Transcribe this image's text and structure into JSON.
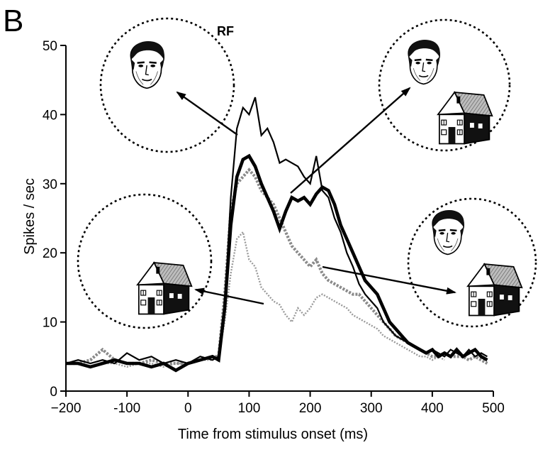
{
  "panel_letter": "B",
  "rf_label": "RF",
  "chart_data": {
    "type": "line",
    "xlabel": "Time from stimulus onset (ms)",
    "ylabel": "Spikes / sec",
    "xlim": [
      -200,
      500
    ],
    "ylim": [
      0,
      50
    ],
    "xticks": [
      -200,
      -100,
      0,
      100,
      200,
      300,
      400,
      500
    ],
    "xtick_labels": [
      "−200",
      "-100",
      "0",
      "100",
      "200",
      "300",
      "400",
      "500"
    ],
    "yticks": [
      0,
      10,
      20,
      30,
      40,
      50
    ],
    "ytick_labels": [
      "0",
      "10",
      "20",
      "30",
      "40",
      "50"
    ],
    "series": [
      {
        "stimulus": "face alone in receptive field",
        "color": "#000000",
        "style": "solid-thin",
        "x": [
          -200,
          -180,
          -160,
          -140,
          -120,
          -100,
          -80,
          -60,
          -40,
          -20,
          0,
          20,
          40,
          50,
          60,
          70,
          80,
          90,
          100,
          110,
          120,
          130,
          140,
          150,
          160,
          170,
          180,
          190,
          200,
          210,
          220,
          230,
          240,
          250,
          260,
          270,
          280,
          290,
          300,
          310,
          320,
          330,
          340,
          350,
          360,
          370,
          380,
          390,
          400,
          410,
          420,
          430,
          440,
          450,
          460,
          470,
          480,
          490
        ],
        "y": [
          4,
          4.5,
          4,
          4.5,
          4,
          5.5,
          4.5,
          5,
          4,
          4.5,
          4,
          5,
          4.5,
          5,
          12,
          28,
          38,
          41,
          40,
          42.5,
          37,
          38,
          36,
          33,
          33.5,
          33,
          32.5,
          31,
          30,
          34,
          29,
          28,
          25,
          23,
          20,
          18,
          15.5,
          14,
          13,
          12,
          10,
          9,
          8,
          7.5,
          7,
          6.5,
          6,
          5.5,
          6,
          5.5,
          5,
          6,
          5.5,
          5,
          6,
          5,
          5.5,
          5
        ]
      },
      {
        "stimulus": "face and house together",
        "color": "#000000",
        "style": "solid-thick",
        "x": [
          -200,
          -180,
          -160,
          -140,
          -120,
          -100,
          -80,
          -60,
          -40,
          -20,
          0,
          20,
          40,
          50,
          60,
          70,
          80,
          90,
          100,
          110,
          120,
          130,
          140,
          150,
          160,
          170,
          180,
          190,
          200,
          210,
          220,
          230,
          240,
          250,
          260,
          270,
          280,
          290,
          300,
          310,
          320,
          330,
          340,
          350,
          360,
          370,
          380,
          390,
          400,
          410,
          420,
          430,
          440,
          450,
          460,
          470,
          480,
          490
        ],
        "y": [
          4,
          4,
          3.5,
          4,
          4.5,
          4,
          4,
          3.5,
          4,
          3,
          4,
          4.5,
          5,
          4.5,
          12,
          24,
          31,
          33.5,
          34,
          32.5,
          30,
          28,
          26,
          23.5,
          26,
          28,
          27.5,
          28,
          27,
          28.5,
          29.5,
          29,
          27,
          24,
          22,
          20,
          18,
          16,
          15,
          14,
          12,
          10,
          9,
          8,
          7,
          6.5,
          6,
          5.5,
          6,
          5,
          5.5,
          5,
          6,
          5,
          5.5,
          6,
          5,
          4.5
        ]
      },
      {
        "stimulus": "house alone in receptive field",
        "color": "#9a9a9a",
        "style": "dotted-thin",
        "x": [
          -200,
          -180,
          -160,
          -140,
          -120,
          -100,
          -80,
          -60,
          -40,
          -20,
          0,
          20,
          40,
          50,
          60,
          70,
          80,
          90,
          100,
          110,
          120,
          130,
          140,
          150,
          160,
          170,
          180,
          190,
          200,
          210,
          220,
          230,
          240,
          250,
          260,
          270,
          280,
          290,
          300,
          310,
          320,
          330,
          340,
          350,
          360,
          370,
          380,
          390,
          400,
          410,
          420
        ],
        "y": [
          4,
          4,
          3.5,
          4,
          4,
          3.5,
          4,
          4,
          3.5,
          4,
          4,
          4.5,
          4.5,
          5,
          10,
          17,
          22,
          23,
          19,
          18,
          15,
          14,
          13,
          12.5,
          11,
          10,
          12,
          11,
          12,
          13.5,
          14,
          13.5,
          13,
          12.5,
          12,
          11,
          10.5,
          10,
          9.5,
          9,
          8,
          7.5,
          7,
          6.5,
          6,
          5.5,
          5,
          5,
          4.5,
          5,
          4.5
        ]
      },
      {
        "stimulus": "house and face together",
        "color": "#8a8a8a",
        "style": "dotted-thick",
        "x": [
          -200,
          -180,
          -160,
          -140,
          -120,
          -100,
          -80,
          -60,
          -40,
          -20,
          0,
          20,
          40,
          50,
          60,
          70,
          80,
          90,
          100,
          110,
          120,
          130,
          140,
          150,
          160,
          170,
          180,
          190,
          200,
          210,
          220,
          230,
          240,
          250,
          260,
          270,
          280,
          290,
          300,
          310,
          320,
          330,
          340,
          350,
          360,
          370,
          380,
          390,
          400,
          410,
          420,
          430,
          440,
          450,
          460,
          470,
          480,
          490
        ],
        "y": [
          4,
          4,
          4.5,
          6,
          4.5,
          4,
          4,
          4.5,
          4,
          4,
          4,
          4.5,
          5,
          5,
          14,
          26,
          30,
          31,
          32,
          31,
          29,
          28,
          27,
          25,
          23,
          21,
          20,
          19,
          18,
          19,
          17,
          16,
          15.5,
          15,
          14.5,
          14,
          14,
          13,
          12,
          11,
          10,
          9,
          8,
          7.5,
          7,
          6.5,
          6,
          5.5,
          5,
          5,
          5.5,
          5,
          5,
          5,
          4.5,
          5,
          4.5,
          4
        ]
      }
    ]
  }
}
